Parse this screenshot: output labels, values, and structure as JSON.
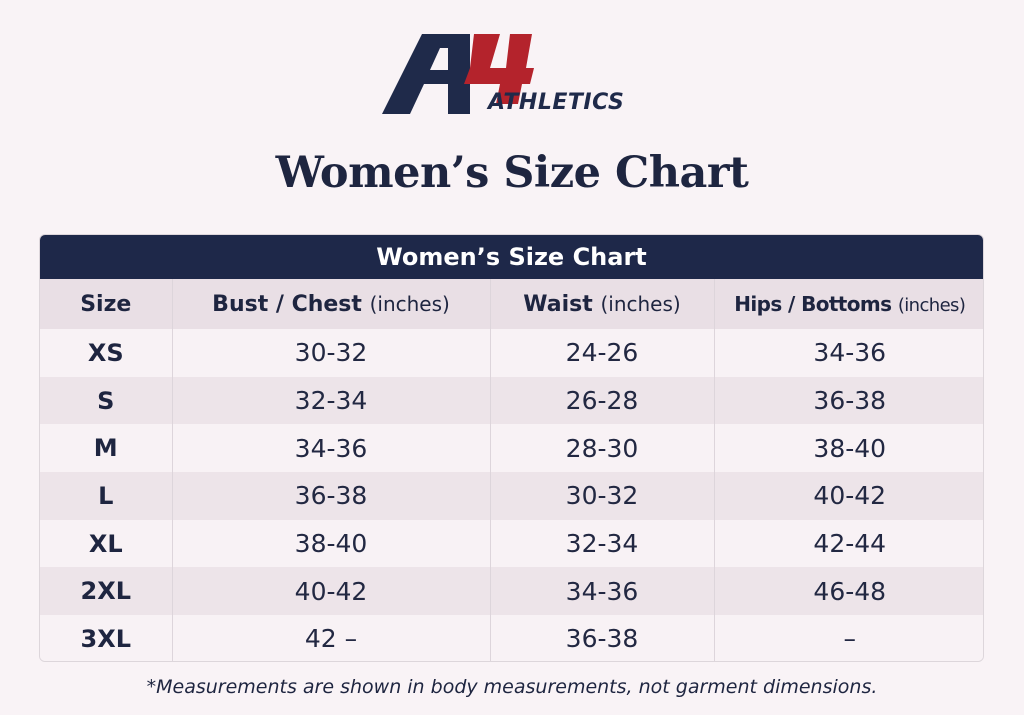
{
  "brand": {
    "logo_mark": "A4",
    "logo_word": "ATHLETICS",
    "colors": {
      "navy": "#1f2a4a",
      "red": "#b4232c"
    }
  },
  "page_title": "Women’s Size Chart",
  "table": {
    "header_title": "Women’s Size Chart",
    "columns": [
      {
        "label": "Size",
        "unit": ""
      },
      {
        "label": "Bust / Chest",
        "unit": "(inches)"
      },
      {
        "label": "Waist",
        "unit": "(inches)"
      },
      {
        "label": "Hips / Bottoms",
        "unit": "(inches)"
      }
    ],
    "rows": [
      [
        "XS",
        "30-32",
        "24-26",
        "34-36"
      ],
      [
        "S",
        "32-34",
        "26-28",
        "36-38"
      ],
      [
        "M",
        "34-36",
        "28-30",
        "38-40"
      ],
      [
        "L",
        "36-38",
        "30-32",
        "40-42"
      ],
      [
        "XL",
        "38-40",
        "32-34",
        "42-44"
      ],
      [
        "2XL",
        "40-42",
        "34-36",
        "46-48"
      ],
      [
        "3XL",
        "42 –",
        "36-38",
        "–"
      ]
    ]
  },
  "footnote": "*Measurements are shown in body measurements, not garment dimensions."
}
